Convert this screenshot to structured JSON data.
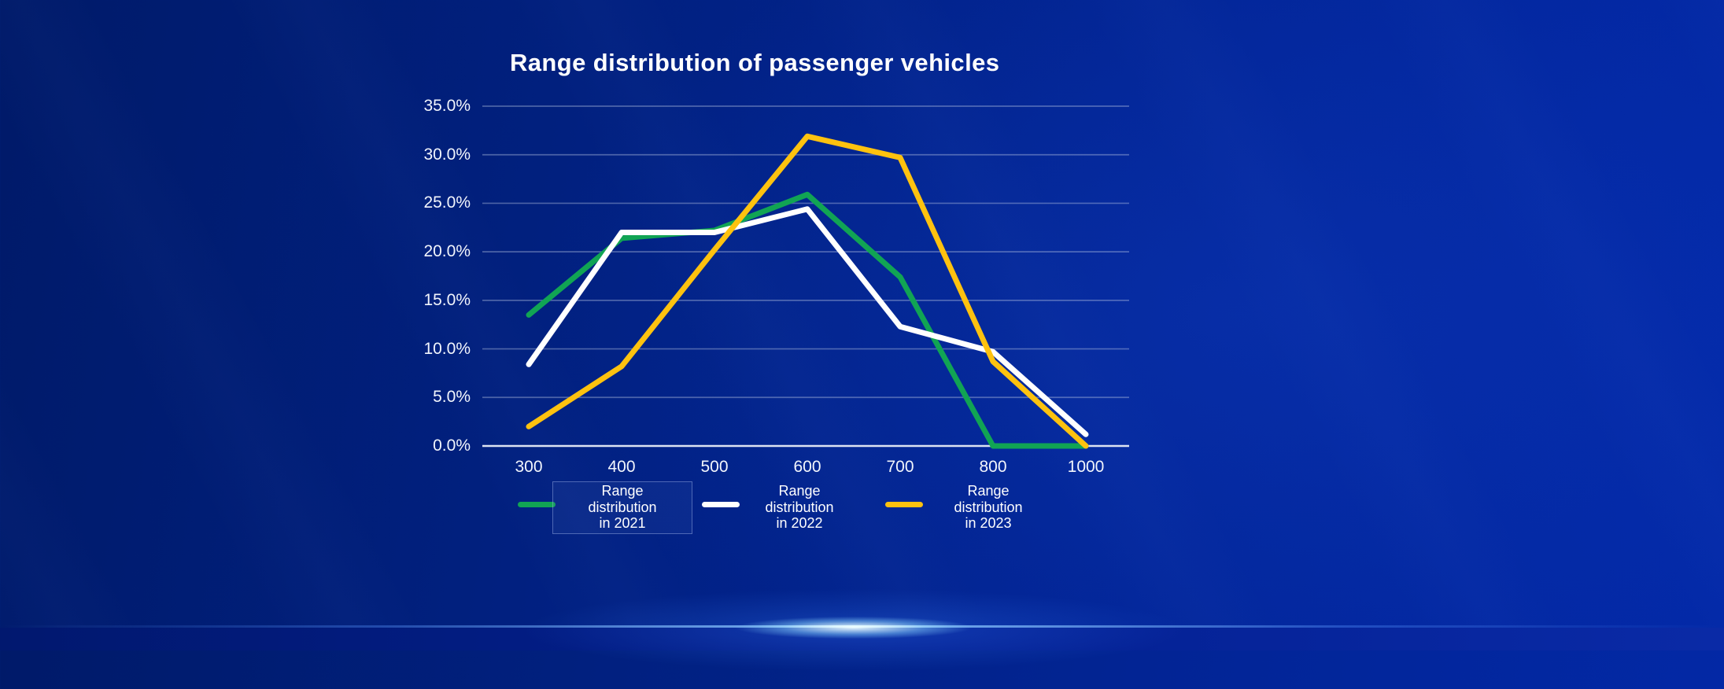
{
  "chart_data": {
    "type": "line",
    "title": "Range distribution of passenger vehicles",
    "categories": [
      "300",
      "400",
      "500",
      "600",
      "700",
      "800",
      "1000"
    ],
    "series": [
      {
        "id": "2021",
        "name": "Range distribution in 2021",
        "color": "#11a454",
        "values": [
          13.5,
          21.4,
          22.2,
          25.9,
          17.4,
          0,
          0
        ]
      },
      {
        "id": "2022",
        "name": "Range distribution in 2022",
        "color": "#ffffff",
        "values": [
          8.4,
          22.0,
          22.0,
          24.4,
          12.3,
          9.7,
          1.2
        ]
      },
      {
        "id": "2023",
        "name": "Range distribution in 2023",
        "color": "#fec20f",
        "values": [
          2.0,
          8.2,
          20.2,
          31.9,
          29.7,
          8.7,
          0
        ]
      }
    ],
    "xlabel": "",
    "ylabel": "",
    "ylim": [
      0,
      35
    ],
    "ytick_step": 5,
    "yticks": [
      "0.0%",
      "5.0%",
      "10.0%",
      "15.0%",
      "20.0%",
      "25.0%",
      "30.0%",
      "35.0%"
    ],
    "grid": "horizontal",
    "legend_position": "bottom"
  },
  "legend": {
    "items": [
      {
        "year": "2021",
        "label": "Range distribution in 2021",
        "label_lines": [
          "Range",
          "distribution",
          "in 2021"
        ],
        "color": "#11a454",
        "highlighted": true
      },
      {
        "year": "2022",
        "label": "Range distribution in 2022",
        "label_lines": [
          "Range",
          "distribution",
          "in 2022"
        ],
        "color": "#ffffff",
        "highlighted": false
      },
      {
        "year": "2023",
        "label": "Range distribution in 2023",
        "label_lines": [
          "Range",
          "distribution",
          "in 2023"
        ],
        "color": "#fec20f",
        "highlighted": false
      }
    ]
  },
  "colors": {
    "background_dark": "#001a69",
    "background_bright": "#0329a8",
    "gridline": "#c9d3ea",
    "axis_line": "#dde3f2",
    "tick_text": "#f2f5fc",
    "title_text": "#ffffff",
    "horizon_glow": "#eafcff"
  }
}
